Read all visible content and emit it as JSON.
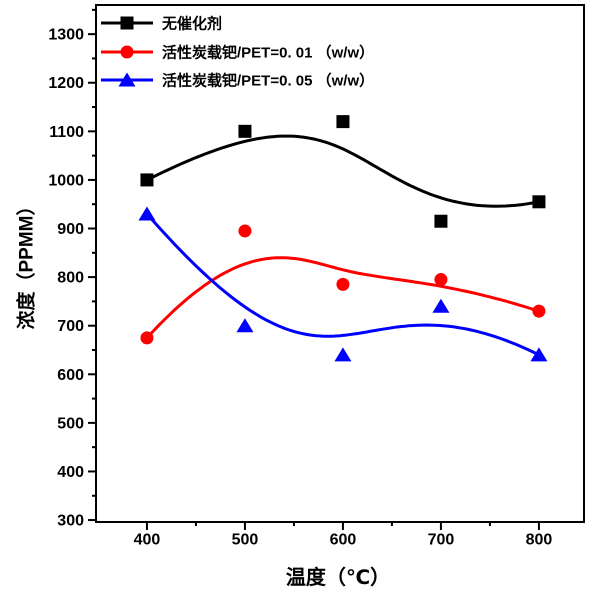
{
  "chart_data": {
    "type": "line",
    "title": "",
    "xlabel": "温度（℃）",
    "ylabel": "浓度（PPMM）",
    "x": [
      400,
      500,
      600,
      700,
      800
    ],
    "series": [
      {
        "name": "无催化剂",
        "color": "#000000",
        "marker": "square",
        "values": [
          1000,
          1100,
          1120,
          915,
          955
        ]
      },
      {
        "name": "活性炭载钯/PET=0. 01 （w/w）",
        "color": "#ff0000",
        "marker": "circle",
        "values": [
          675,
          895,
          785,
          795,
          730
        ]
      },
      {
        "name": "活性炭载钯/PET=0. 05 （w/w）",
        "color": "#0000ff",
        "marker": "triangle",
        "values": [
          930,
          700,
          640,
          740,
          640
        ]
      }
    ],
    "xlim": [
      348,
      846
    ],
    "ylim": [
      296,
      1360
    ],
    "x_major_ticks": [
      400,
      500,
      600,
      700,
      800
    ],
    "x_minor_ticks": [
      450,
      550,
      650,
      750
    ],
    "y_major_ticks": [
      300,
      400,
      500,
      600,
      700,
      800,
      900,
      1000,
      1100,
      1200,
      1300
    ],
    "y_minor_ticks": [
      350,
      450,
      550,
      650,
      750,
      850,
      950,
      1050,
      1150,
      1250,
      1350
    ],
    "curve_style": "b-spline",
    "legend_position": "top-left",
    "grid": false,
    "frame_color": "#000000",
    "background": "#ffffff"
  }
}
